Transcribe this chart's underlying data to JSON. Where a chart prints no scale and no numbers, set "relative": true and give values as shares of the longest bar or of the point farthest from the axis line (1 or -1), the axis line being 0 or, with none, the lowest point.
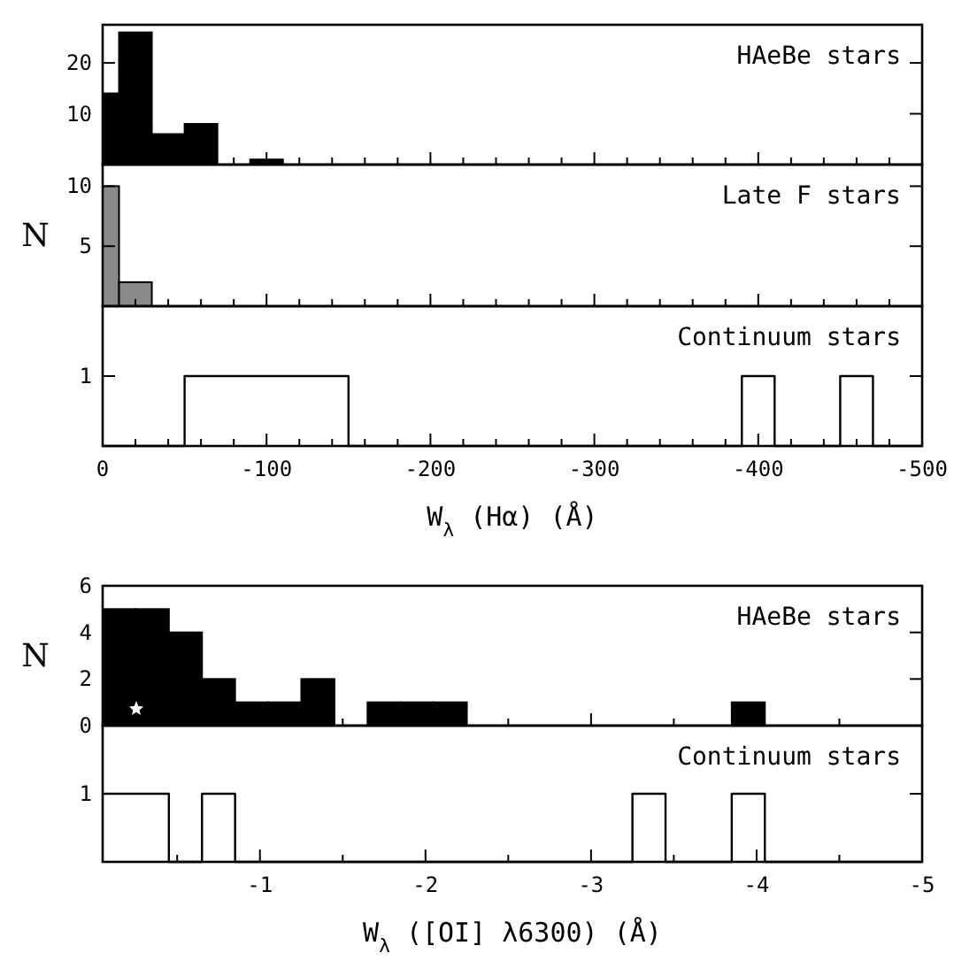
{
  "chart_data": [
    {
      "type": "histogram",
      "annotations": [
        "HAeBe stars"
      ],
      "bins": [
        0,
        -10,
        -30,
        -50,
        -70,
        -90,
        -110
      ],
      "values": [
        14,
        26,
        6,
        8,
        0,
        1
      ],
      "color": "#000000",
      "xlim": [
        0,
        -500
      ],
      "ylim": [
        0,
        27.5
      ],
      "yticks": [
        10,
        20
      ],
      "xticks": [
        0,
        {
          "value": -20,
          "label": null
        },
        {
          "value": -40,
          "label": null
        },
        {
          "value": -60,
          "label": null
        },
        {
          "value": -80,
          "label": null
        },
        -100,
        {
          "value": -120,
          "label": null
        },
        {
          "value": -140,
          "label": null
        },
        {
          "value": -160,
          "label": null
        },
        {
          "value": -180,
          "label": null
        },
        -200,
        {
          "value": -220,
          "label": null
        },
        {
          "value": -240,
          "label": null
        },
        {
          "value": -260,
          "label": null
        },
        {
          "value": -280,
          "label": null
        },
        -300,
        {
          "value": -320,
          "label": null
        },
        {
          "value": -340,
          "label": null
        },
        {
          "value": -360,
          "label": null
        },
        {
          "value": -380,
          "label": null
        },
        -400,
        {
          "value": -420,
          "label": null
        },
        {
          "value": -440,
          "label": null
        },
        {
          "value": -460,
          "label": null
        },
        {
          "value": -480,
          "label": null
        },
        -500
      ],
      "tick_labels": "y"
    },
    {
      "type": "histogram",
      "ylabel": "N",
      "annotations": [
        "Late F stars"
      ],
      "bins": [
        0,
        -10,
        -30
      ],
      "values": [
        10,
        2
      ],
      "color": "#8a8a8a",
      "xlim": [
        0,
        -500
      ],
      "ylim": [
        0,
        11.8
      ],
      "yticks": [
        5,
        10
      ],
      "xticks": [
        0,
        {
          "value": -20,
          "label": null
        },
        {
          "value": -40,
          "label": null
        },
        {
          "value": -60,
          "label": null
        },
        {
          "value": -80,
          "label": null
        },
        -100,
        {
          "value": -120,
          "label": null
        },
        {
          "value": -140,
          "label": null
        },
        {
          "value": -160,
          "label": null
        },
        {
          "value": -180,
          "label": null
        },
        -200,
        {
          "value": -220,
          "label": null
        },
        {
          "value": -240,
          "label": null
        },
        {
          "value": -260,
          "label": null
        },
        {
          "value": -280,
          "label": null
        },
        -300,
        {
          "value": -320,
          "label": null
        },
        {
          "value": -340,
          "label": null
        },
        {
          "value": -360,
          "label": null
        },
        {
          "value": -380,
          "label": null
        },
        -400,
        {
          "value": -420,
          "label": null
        },
        {
          "value": -440,
          "label": null
        },
        {
          "value": -460,
          "label": null
        },
        {
          "value": -480,
          "label": null
        },
        -500
      ],
      "tick_labels": "y"
    },
    {
      "type": "step",
      "xlabel": "W$_{λ}$ (Hα) (Å)",
      "annotations": [
        "Continuum stars",
        "1"
      ],
      "relative": true,
      "x": [
        0,
        -50,
        -150,
        -390,
        -410,
        -450,
        -470,
        -500
      ],
      "values": [
        0,
        1,
        0,
        1,
        0,
        1,
        0,
        0
      ],
      "color": "#000000",
      "xlim": [
        0,
        -500
      ],
      "xticks": [
        0,
        {
          "value": -20,
          "label": null
        },
        {
          "value": -40,
          "label": null
        },
        {
          "value": -60,
          "label": null
        },
        {
          "value": -80,
          "label": null
        },
        -100,
        {
          "value": -120,
          "label": null
        },
        {
          "value": -140,
          "label": null
        },
        {
          "value": -160,
          "label": null
        },
        {
          "value": -180,
          "label": null
        },
        -200,
        {
          "value": -220,
          "label": null
        },
        {
          "value": -240,
          "label": null
        },
        {
          "value": -260,
          "label": null
        },
        {
          "value": -280,
          "label": null
        },
        -300,
        {
          "value": -320,
          "label": null
        },
        {
          "value": -340,
          "label": null
        },
        {
          "value": -360,
          "label": null
        },
        {
          "value": -380,
          "label": null
        },
        -400,
        {
          "value": -420,
          "label": null
        },
        {
          "value": -440,
          "label": null
        },
        {
          "value": -460,
          "label": null
        },
        {
          "value": -480,
          "label": null
        },
        -500
      ]
    },
    {
      "type": "histogram",
      "ylabel": "N",
      "annotations": [
        "HAeBe stars"
      ],
      "bins": [
        -0.05,
        -0.25,
        -0.45,
        -0.65,
        -0.85,
        -1.05,
        -1.25,
        -1.45,
        -1.65,
        -1.85,
        -2.05,
        -2.25,
        -3.85,
        -4.05
      ],
      "values": [
        5,
        5,
        4,
        2,
        1,
        1,
        2,
        0,
        1,
        1,
        1,
        0,
        1
      ],
      "color": "#000000",
      "xlim": [
        -0.05,
        -5
      ],
      "ylim": [
        0,
        6
      ],
      "yticks": [
        0,
        2,
        4,
        6
      ],
      "xticks": [
        {
          "value": -0.5,
          "label": null
        },
        -1,
        {
          "value": -1.5,
          "label": null
        },
        -2,
        {
          "value": -2.5,
          "label": null
        },
        -3,
        {
          "value": -3.5,
          "label": null
        },
        -4,
        {
          "value": -4.5,
          "label": null
        },
        -5
      ],
      "tick_labels": "y"
    },
    {
      "type": "step",
      "xlabel": "W$_{λ}$ ([OI] λ6300)   (Å)",
      "annotations": [
        "Continuum stars",
        "1"
      ],
      "relative": true,
      "x": [
        -0.05,
        -0.45,
        -0.65,
        -0.85,
        -3.25,
        -3.45,
        -3.85,
        -4.05,
        -5
      ],
      "values": [
        1,
        0,
        1,
        0,
        1,
        0,
        1,
        0,
        0
      ],
      "color": "#000000",
      "xlim": [
        -0.05,
        -5
      ],
      "xticks": [
        {
          "value": -0.5,
          "label": null
        },
        -1,
        {
          "value": -1.5,
          "label": null
        },
        -2,
        {
          "value": -2.5,
          "label": null
        },
        -3,
        {
          "value": -3.5,
          "label": null
        },
        -4,
        {
          "value": -4.5,
          "label": null
        },
        -5
      ]
    }
  ]
}
